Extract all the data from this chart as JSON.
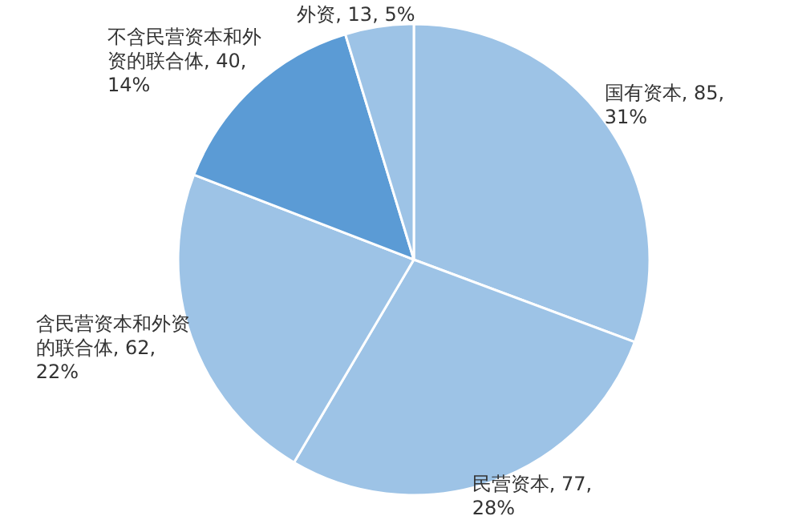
{
  "chart_data": {
    "type": "pie",
    "categories": [
      "国有资本",
      "民营资本",
      "含民营资本和外资的联合体",
      "不含民营资本和外资的联合体",
      "外资"
    ],
    "values": [
      85,
      77,
      62,
      40,
      13
    ],
    "value_labels": [
      "85, 31%",
      "77, 28%",
      "62, 22%",
      "40, 14%",
      "13, 5%"
    ],
    "colors": [
      "#9dc3e6",
      "#9dc3e6",
      "#9dc3e6",
      "#5b9bd5",
      "#9dc3e6"
    ]
  }
}
